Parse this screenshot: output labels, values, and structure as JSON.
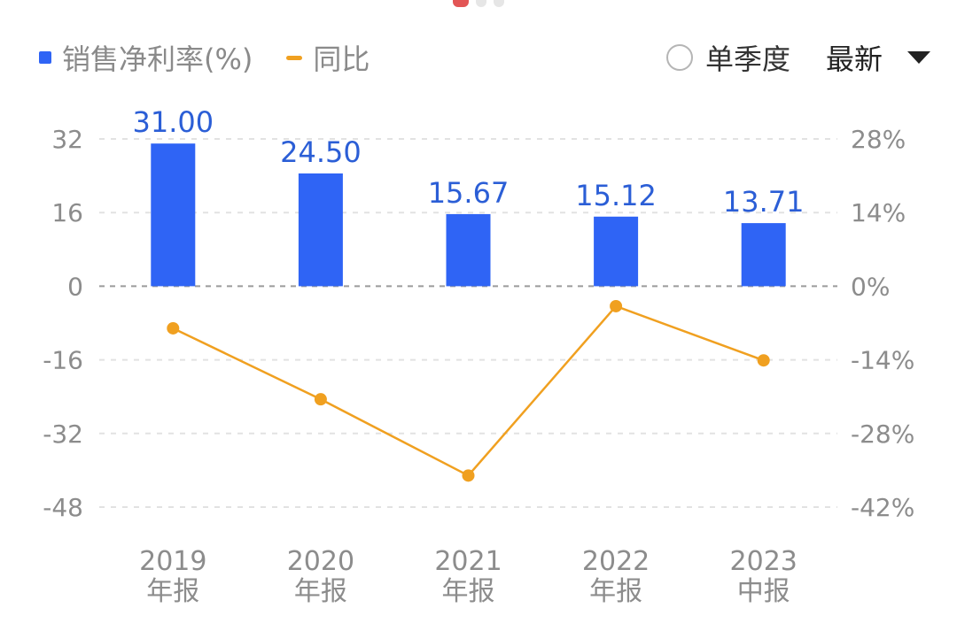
{
  "legend": {
    "series1": "销售净利率(%)",
    "series2": "同比"
  },
  "controls": {
    "single_quarter": "单季度",
    "sort": "最新"
  },
  "colors": {
    "bar": "#2f64f5",
    "line": "#f0a020",
    "label": "#2b5ed6",
    "grid": "#e2e2e2",
    "zero": "#9a9a9a"
  },
  "chart_data": {
    "type": "bar",
    "categories": [
      [
        "2019",
        "年报"
      ],
      [
        "2020",
        "年报"
      ],
      [
        "2021",
        "年报"
      ],
      [
        "2022",
        "年报"
      ],
      [
        "2023",
        "中报"
      ]
    ],
    "series": [
      {
        "name": "销售净利率(%)",
        "type": "bar",
        "axis": "left",
        "values": [
          31.0,
          24.5,
          15.67,
          15.12,
          13.71
        ],
        "labels": [
          "31.00",
          "24.50",
          "15.67",
          "15.12",
          "13.71"
        ]
      },
      {
        "name": "同比",
        "type": "line",
        "axis": "right",
        "values": [
          -8.0,
          -21.5,
          -36.0,
          -3.8,
          -14.1
        ]
      }
    ],
    "y_left": {
      "ticks": [
        "32",
        "16",
        "0",
        "-16",
        "-32",
        "-48"
      ],
      "range": [
        -48,
        32
      ]
    },
    "y_right": {
      "ticks": [
        "28%",
        "14%",
        "0%",
        "-14%",
        "-28%",
        "-42%"
      ],
      "range": [
        -42,
        28
      ]
    },
    "grid": true,
    "legend_position": "top-left"
  }
}
